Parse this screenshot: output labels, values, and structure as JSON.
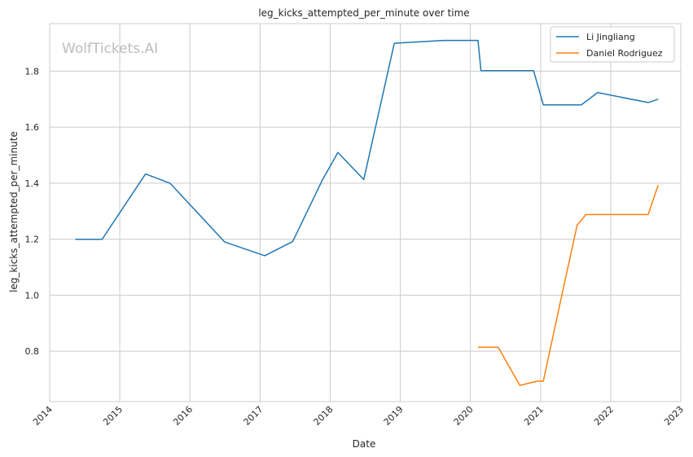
{
  "watermark": "WolfTickets.AI",
  "chart_data": {
    "type": "line",
    "title": "leg_kicks_attempted_per_minute over time",
    "xlabel": "Date",
    "ylabel": "leg_kicks_attempted_per_minute",
    "x_ticks": [
      "2014",
      "2015",
      "2016",
      "2017",
      "2018",
      "2019",
      "2020",
      "2021",
      "2022",
      "2023"
    ],
    "y_ticks": [
      "0.8",
      "1.0",
      "1.2",
      "1.4",
      "1.6",
      "1.8"
    ],
    "xlim": [
      "2014-01-01",
      "2023-01-01"
    ],
    "ylim": [
      0.62,
      1.97
    ],
    "grid": true,
    "legend_position": "top-right",
    "series": [
      {
        "name": "Li Jingliang",
        "color": "#1f77b4",
        "points": [
          [
            "2014-05-15",
            1.2
          ],
          [
            "2014-10-01",
            1.2
          ],
          [
            "2015-05-15",
            1.433
          ],
          [
            "2015-09-20",
            1.4
          ],
          [
            "2016-07-01",
            1.19
          ],
          [
            "2017-01-25",
            1.141
          ],
          [
            "2017-06-20",
            1.192
          ],
          [
            "2017-11-20",
            1.41
          ],
          [
            "2018-02-10",
            1.51
          ],
          [
            "2018-06-25",
            1.413
          ],
          [
            "2018-12-01",
            1.9
          ],
          [
            "2019-08-15",
            1.91
          ],
          [
            "2020-02-10",
            1.91
          ],
          [
            "2020-02-25",
            1.802
          ],
          [
            "2020-11-25",
            1.802
          ],
          [
            "2021-01-15",
            1.68
          ],
          [
            "2021-08-01",
            1.68
          ],
          [
            "2021-10-25",
            1.724
          ],
          [
            "2022-07-15",
            1.688
          ],
          [
            "2022-09-05",
            1.7
          ]
        ]
      },
      {
        "name": "Daniel Rodriguez",
        "color": "#ff7f0e",
        "points": [
          [
            "2020-02-10",
            0.814
          ],
          [
            "2020-05-25",
            0.814
          ],
          [
            "2020-09-15",
            0.678
          ],
          [
            "2020-12-15",
            0.693
          ],
          [
            "2021-01-15",
            0.693
          ],
          [
            "2021-04-15",
            0.98
          ],
          [
            "2021-07-10",
            1.25
          ],
          [
            "2021-08-25",
            1.288
          ],
          [
            "2022-07-15",
            1.288
          ],
          [
            "2022-09-05",
            1.393
          ]
        ]
      }
    ]
  }
}
